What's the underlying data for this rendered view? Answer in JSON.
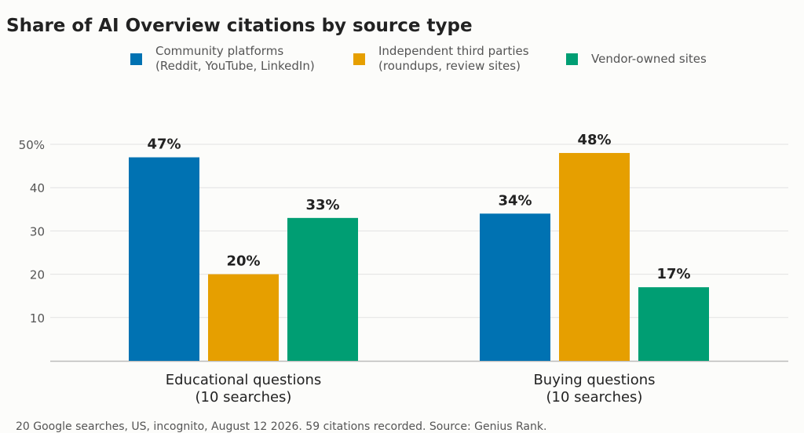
{
  "chart_data": {
    "type": "bar",
    "title": "Share of AI Overview citations by source type",
    "categories": [
      [
        "Educational questions",
        "(10 searches)"
      ],
      [
        "Buying questions",
        "(10 searches)"
      ]
    ],
    "series": [
      {
        "label_lines": [
          "Community platforms",
          "(Reddit, YouTube, LinkedIn)"
        ],
        "color": "#0072b2",
        "values": [
          47,
          34
        ],
        "value_labels": [
          "47%",
          "34%"
        ]
      },
      {
        "label_lines": [
          "Independent third parties",
          "(roundups, review sites)"
        ],
        "color": "#e69f00",
        "values": [
          20,
          48
        ],
        "value_labels": [
          "20%",
          "48%"
        ]
      },
      {
        "label_lines": [
          "Vendor-owned sites"
        ],
        "color": "#009e73",
        "values": [
          33,
          17
        ],
        "value_labels": [
          "33%",
          "17%"
        ]
      }
    ],
    "y_ticks": [
      {
        "value": 10,
        "label": "10"
      },
      {
        "value": 20,
        "label": "20"
      },
      {
        "value": 30,
        "label": "30"
      },
      {
        "value": 40,
        "label": "40"
      },
      {
        "value": 50,
        "label": "50%"
      }
    ],
    "ylim": [
      0,
      50
    ],
    "grid": true,
    "legend_position": "top"
  },
  "footnote": "20 Google searches, US, incognito, August 12 2026. 59 citations recorded. Source: Genius Rank."
}
